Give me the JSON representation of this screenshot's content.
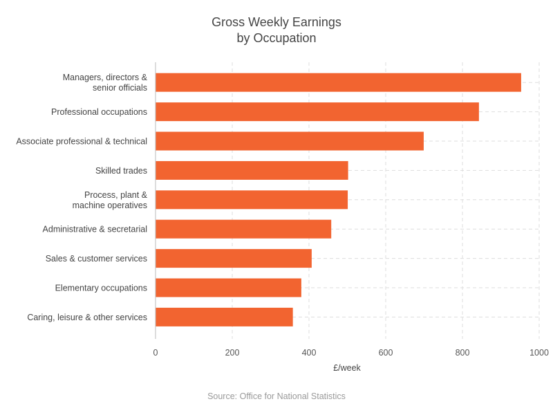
{
  "chart_data": {
    "type": "bar",
    "orientation": "horizontal",
    "title_lines": [
      "Gross Weekly Earnings",
      "by Occupation"
    ],
    "xlabel": "£/week",
    "ylabel": "",
    "xlim": [
      0,
      1000
    ],
    "xticks": [
      0,
      200,
      400,
      600,
      800,
      1000
    ],
    "grid": true,
    "bar_color": "#f26430",
    "categories": [
      [
        "Managers, directors &",
        "senior officials"
      ],
      [
        "Professional occupations"
      ],
      [
        "Associate professional & technical"
      ],
      [
        "Skilled trades"
      ],
      [
        "Process, plant &",
        "machine operatives"
      ],
      [
        "Administrative & secretarial"
      ],
      [
        "Sales & customer services"
      ],
      [
        "Elementary occupations"
      ],
      [
        "Caring, leisure & other services"
      ]
    ],
    "values": [
      953,
      843,
      699,
      502,
      501,
      458,
      407,
      380,
      358
    ]
  },
  "source": "Source: Office for National Statistics"
}
